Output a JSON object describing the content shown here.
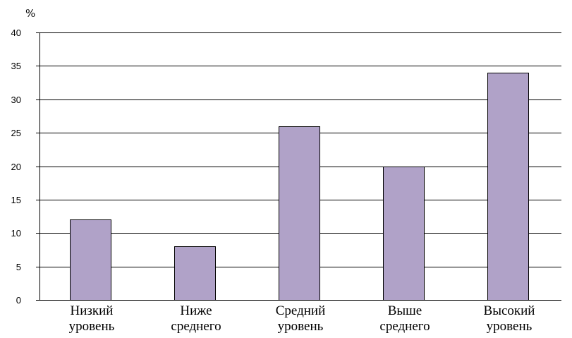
{
  "chart_data": {
    "type": "bar",
    "title": "",
    "xlabel": "",
    "ylabel": "%",
    "ylim": [
      0,
      40
    ],
    "yticks": [
      0,
      5,
      10,
      15,
      20,
      25,
      30,
      35,
      40
    ],
    "grid": true,
    "legend": "none",
    "categories": [
      [
        "Низкий",
        "уровень"
      ],
      [
        "Ниже",
        "среднего"
      ],
      [
        "Средний",
        "уровень"
      ],
      [
        "Выше",
        "среднего"
      ],
      [
        "Высокий",
        "уровень"
      ]
    ],
    "series": [
      {
        "values": [
          12,
          8,
          26,
          20,
          34
        ],
        "color": "#b0a2c8"
      }
    ]
  }
}
